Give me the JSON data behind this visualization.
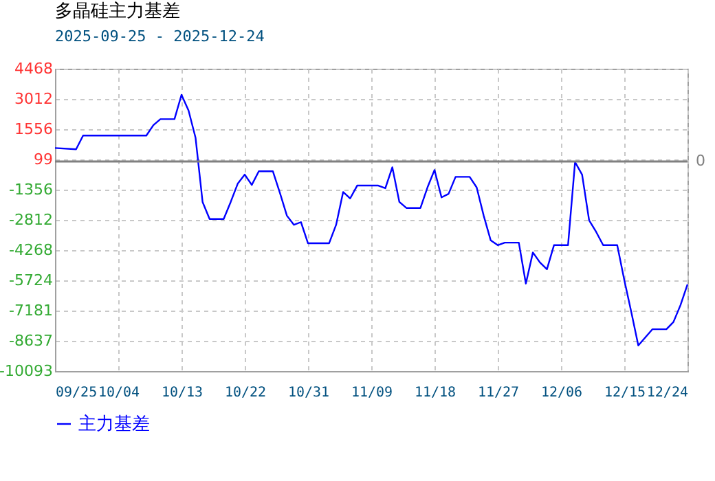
{
  "chart_data": {
    "type": "line",
    "title": "多晶硅主力基差",
    "subtitle": "2025-09-25 - 2025-12-24",
    "x": [
      "2025-09-25",
      "2025-09-28",
      "2025-09-29",
      "2025-10-08",
      "2025-10-09",
      "2025-10-10",
      "2025-10-12",
      "2025-10-13",
      "2025-10-14",
      "2025-10-15",
      "2025-10-16",
      "2025-10-17",
      "2025-10-19",
      "2025-10-20",
      "2025-10-21",
      "2025-10-22",
      "2025-10-23",
      "2025-10-24",
      "2025-10-26",
      "2025-10-27",
      "2025-10-28",
      "2025-10-29",
      "2025-10-30",
      "2025-10-31",
      "2025-11-03",
      "2025-11-04",
      "2025-11-05",
      "2025-11-06",
      "2025-11-07",
      "2025-11-10",
      "2025-11-11",
      "2025-11-12",
      "2025-11-13",
      "2025-11-14",
      "2025-11-16",
      "2025-11-17",
      "2025-11-18",
      "2025-11-19",
      "2025-11-20",
      "2025-11-21",
      "2025-11-23",
      "2025-11-24",
      "2025-11-25",
      "2025-11-26",
      "2025-11-27",
      "2025-11-28",
      "2025-11-30",
      "2025-12-01",
      "2025-12-02",
      "2025-12-03",
      "2025-12-04",
      "2025-12-05",
      "2025-12-07",
      "2025-12-08",
      "2025-12-09",
      "2025-12-10",
      "2025-12-11",
      "2025-12-12",
      "2025-12-14",
      "2025-12-15",
      "2025-12-16",
      "2025-12-17",
      "2025-12-19",
      "2025-12-21",
      "2025-12-22",
      "2025-12-23",
      "2025-12-24"
    ],
    "series": [
      {
        "name": "主力基差",
        "color": "#0000ff",
        "values": [
          650,
          590,
          1250,
          1250,
          1750,
          2040,
          2040,
          3210,
          2460,
          1140,
          -1950,
          -2770,
          -2770,
          -1950,
          -1070,
          -630,
          -1130,
          -470,
          -470,
          -1510,
          -2610,
          -3050,
          -2920,
          -3940,
          -3940,
          -3050,
          -1470,
          -1780,
          -1160,
          -1160,
          -1290,
          -280,
          -1950,
          -2240,
          -2240,
          -1250,
          -410,
          -1730,
          -1560,
          -740,
          -740,
          -1250,
          -2610,
          -3800,
          -4030,
          -3910,
          -3910,
          -5880,
          -4380,
          -4860,
          -5190,
          -4030,
          -4030,
          -30,
          -630,
          -2830,
          -3390,
          -4030,
          -4030,
          -5700,
          -7250,
          -8860,
          -8080,
          -8080,
          -7730,
          -6920,
          -5920
        ]
      }
    ],
    "xlim": [
      "2025-09-25",
      "2025-12-24"
    ],
    "xticks": [
      {
        "value": "2025-09-25",
        "label": "09/25"
      },
      {
        "value": "2025-10-04",
        "label": "10/04"
      },
      {
        "value": "2025-10-13",
        "label": "10/13"
      },
      {
        "value": "2025-10-22",
        "label": "10/22"
      },
      {
        "value": "2025-10-31",
        "label": "10/31"
      },
      {
        "value": "2025-11-09",
        "label": "11/09"
      },
      {
        "value": "2025-11-18",
        "label": "11/18"
      },
      {
        "value": "2025-11-27",
        "label": "11/27"
      },
      {
        "value": "2025-12-06",
        "label": "12/06"
      },
      {
        "value": "2025-12-15",
        "label": "12/15"
      },
      {
        "value": "2025-12-24",
        "label": "12/24"
      }
    ],
    "ylim": [
      -10093,
      4468
    ],
    "yticks": [
      -10093,
      -8637,
      -7181,
      -5724,
      -4268,
      -2812,
      -1356,
      99,
      1556,
      3012,
      4468
    ],
    "ref_lines": [
      {
        "axis": "y",
        "value": 0,
        "label": "0",
        "color": "#808080"
      }
    ],
    "grid": true,
    "legend": "bottom left",
    "marker": "none",
    "line_style": "solid"
  }
}
